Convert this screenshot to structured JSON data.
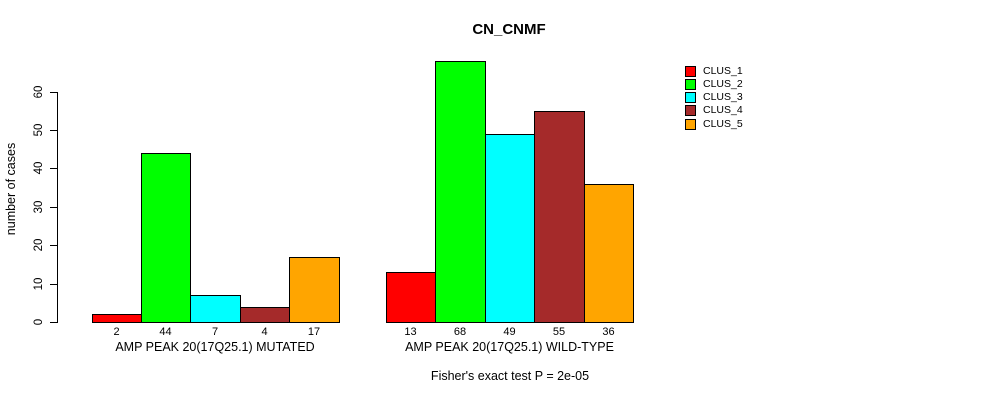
{
  "title": "CN_CNMF",
  "y_axis_title": "number of cases",
  "subtitle": "Fisher's exact test P = 2e-05",
  "chart_data": {
    "type": "bar",
    "title": "CN_CNMF",
    "xlabel": "",
    "ylabel": "number of cases",
    "categories": [
      "CLUS_1",
      "CLUS_2",
      "CLUS_3",
      "CLUS_4",
      "CLUS_5"
    ],
    "series": [
      {
        "name": "AMP PEAK 20(17Q25.1) MUTATED",
        "values": [
          2,
          44,
          7,
          4,
          17
        ]
      },
      {
        "name": "AMP PEAK 20(17Q25.1) WILD-TYPE",
        "values": [
          13,
          68,
          49,
          55,
          36
        ]
      }
    ],
    "bar_colors": [
      "#FF0000",
      "#00FF00",
      "#00FFFF",
      "#A52A2A",
      "#FFA500"
    ],
    "yticks": [
      0,
      10,
      20,
      30,
      40,
      50,
      60
    ],
    "ylim": [
      0,
      68
    ],
    "grid": false,
    "legend": {
      "position": "right",
      "entries": [
        {
          "label": "CLUS_1",
          "color": "#FF0000"
        },
        {
          "label": "CLUS_2",
          "color": "#00FF00"
        },
        {
          "label": "CLUS_3",
          "color": "#00FFFF"
        },
        {
          "label": "CLUS_4",
          "color": "#A52A2A"
        },
        {
          "label": "CLUS_5",
          "color": "#FFA500"
        }
      ]
    },
    "annotation": "Fisher's exact test P = 2e-05",
    "bar_value_labels_shown": true
  }
}
